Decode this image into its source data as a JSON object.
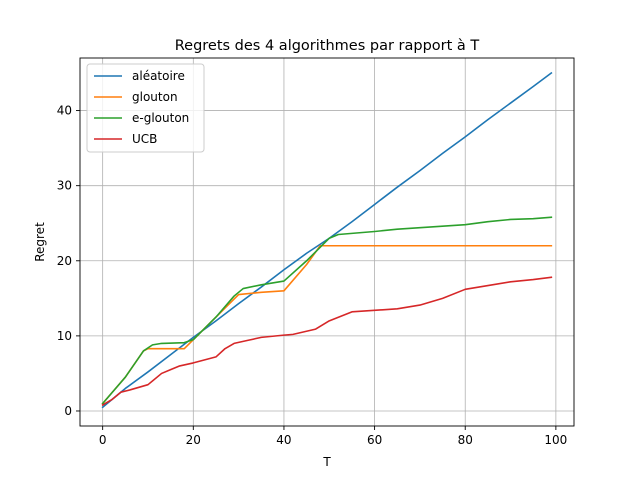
{
  "chart_data": {
    "type": "line",
    "title": "Regrets des 4 algorithmes par rapport à T",
    "xlabel": "T",
    "ylabel": "Regret",
    "xlim": [
      -5,
      104
    ],
    "ylim": [
      -2,
      47
    ],
    "xticks": [
      0,
      20,
      40,
      60,
      80,
      100
    ],
    "yticks": [
      0,
      10,
      20,
      30,
      40
    ],
    "grid": true,
    "legend_position": "top-left",
    "series": [
      {
        "name": "aléatoire",
        "color": "#1f77b4",
        "points": [
          [
            0,
            0.5
          ],
          [
            5,
            3.0
          ],
          [
            10,
            5.2
          ],
          [
            15,
            7.5
          ],
          [
            20,
            9.8
          ],
          [
            25,
            12.0
          ],
          [
            30,
            14.3
          ],
          [
            35,
            16.5
          ],
          [
            40,
            18.8
          ],
          [
            45,
            21.0
          ],
          [
            50,
            23.0
          ],
          [
            55,
            25.2
          ],
          [
            60,
            27.5
          ],
          [
            65,
            29.8
          ],
          [
            70,
            32.0
          ],
          [
            75,
            34.3
          ],
          [
            80,
            36.5
          ],
          [
            85,
            38.8
          ],
          [
            90,
            41.0
          ],
          [
            95,
            43.2
          ],
          [
            99,
            45.0
          ]
        ]
      },
      {
        "name": "glouton",
        "color": "#ff7f0e",
        "points": [
          [
            0,
            1.0
          ],
          [
            5,
            4.5
          ],
          [
            9,
            8.0
          ],
          [
            10,
            8.3
          ],
          [
            18,
            8.3
          ],
          [
            20,
            9.5
          ],
          [
            25,
            12.5
          ],
          [
            30,
            15.5
          ],
          [
            35,
            15.8
          ],
          [
            40,
            16.0
          ],
          [
            45,
            19.5
          ],
          [
            48,
            22.0
          ],
          [
            60,
            22.0
          ],
          [
            70,
            22.0
          ],
          [
            80,
            22.0
          ],
          [
            90,
            22.0
          ],
          [
            99,
            22.0
          ]
        ]
      },
      {
        "name": "e-glouton",
        "color": "#2ca02c",
        "points": [
          [
            0,
            1.0
          ],
          [
            5,
            4.5
          ],
          [
            9,
            8.0
          ],
          [
            11,
            8.8
          ],
          [
            13,
            9.0
          ],
          [
            18,
            9.1
          ],
          [
            20,
            9.5
          ],
          [
            25,
            12.5
          ],
          [
            29,
            15.3
          ],
          [
            31,
            16.3
          ],
          [
            35,
            16.8
          ],
          [
            40,
            17.3
          ],
          [
            45,
            20.0
          ],
          [
            50,
            23.0
          ],
          [
            52,
            23.5
          ],
          [
            60,
            23.9
          ],
          [
            65,
            24.2
          ],
          [
            70,
            24.4
          ],
          [
            75,
            24.6
          ],
          [
            80,
            24.8
          ],
          [
            85,
            25.2
          ],
          [
            90,
            25.5
          ],
          [
            95,
            25.6
          ],
          [
            99,
            25.8
          ]
        ]
      },
      {
        "name": "UCB",
        "color": "#d62728",
        "points": [
          [
            0,
            0.8
          ],
          [
            2,
            1.5
          ],
          [
            4,
            2.5
          ],
          [
            6,
            2.8
          ],
          [
            10,
            3.5
          ],
          [
            13,
            5.0
          ],
          [
            15,
            5.5
          ],
          [
            17,
            6.0
          ],
          [
            20,
            6.4
          ],
          [
            25,
            7.2
          ],
          [
            27,
            8.3
          ],
          [
            29,
            9.0
          ],
          [
            32,
            9.4
          ],
          [
            35,
            9.8
          ],
          [
            40,
            10.1
          ],
          [
            42,
            10.2
          ],
          [
            47,
            10.9
          ],
          [
            50,
            12.0
          ],
          [
            55,
            13.2
          ],
          [
            60,
            13.4
          ],
          [
            65,
            13.6
          ],
          [
            70,
            14.1
          ],
          [
            75,
            15.0
          ],
          [
            80,
            16.2
          ],
          [
            85,
            16.7
          ],
          [
            90,
            17.2
          ],
          [
            95,
            17.5
          ],
          [
            99,
            17.8
          ]
        ]
      }
    ]
  }
}
